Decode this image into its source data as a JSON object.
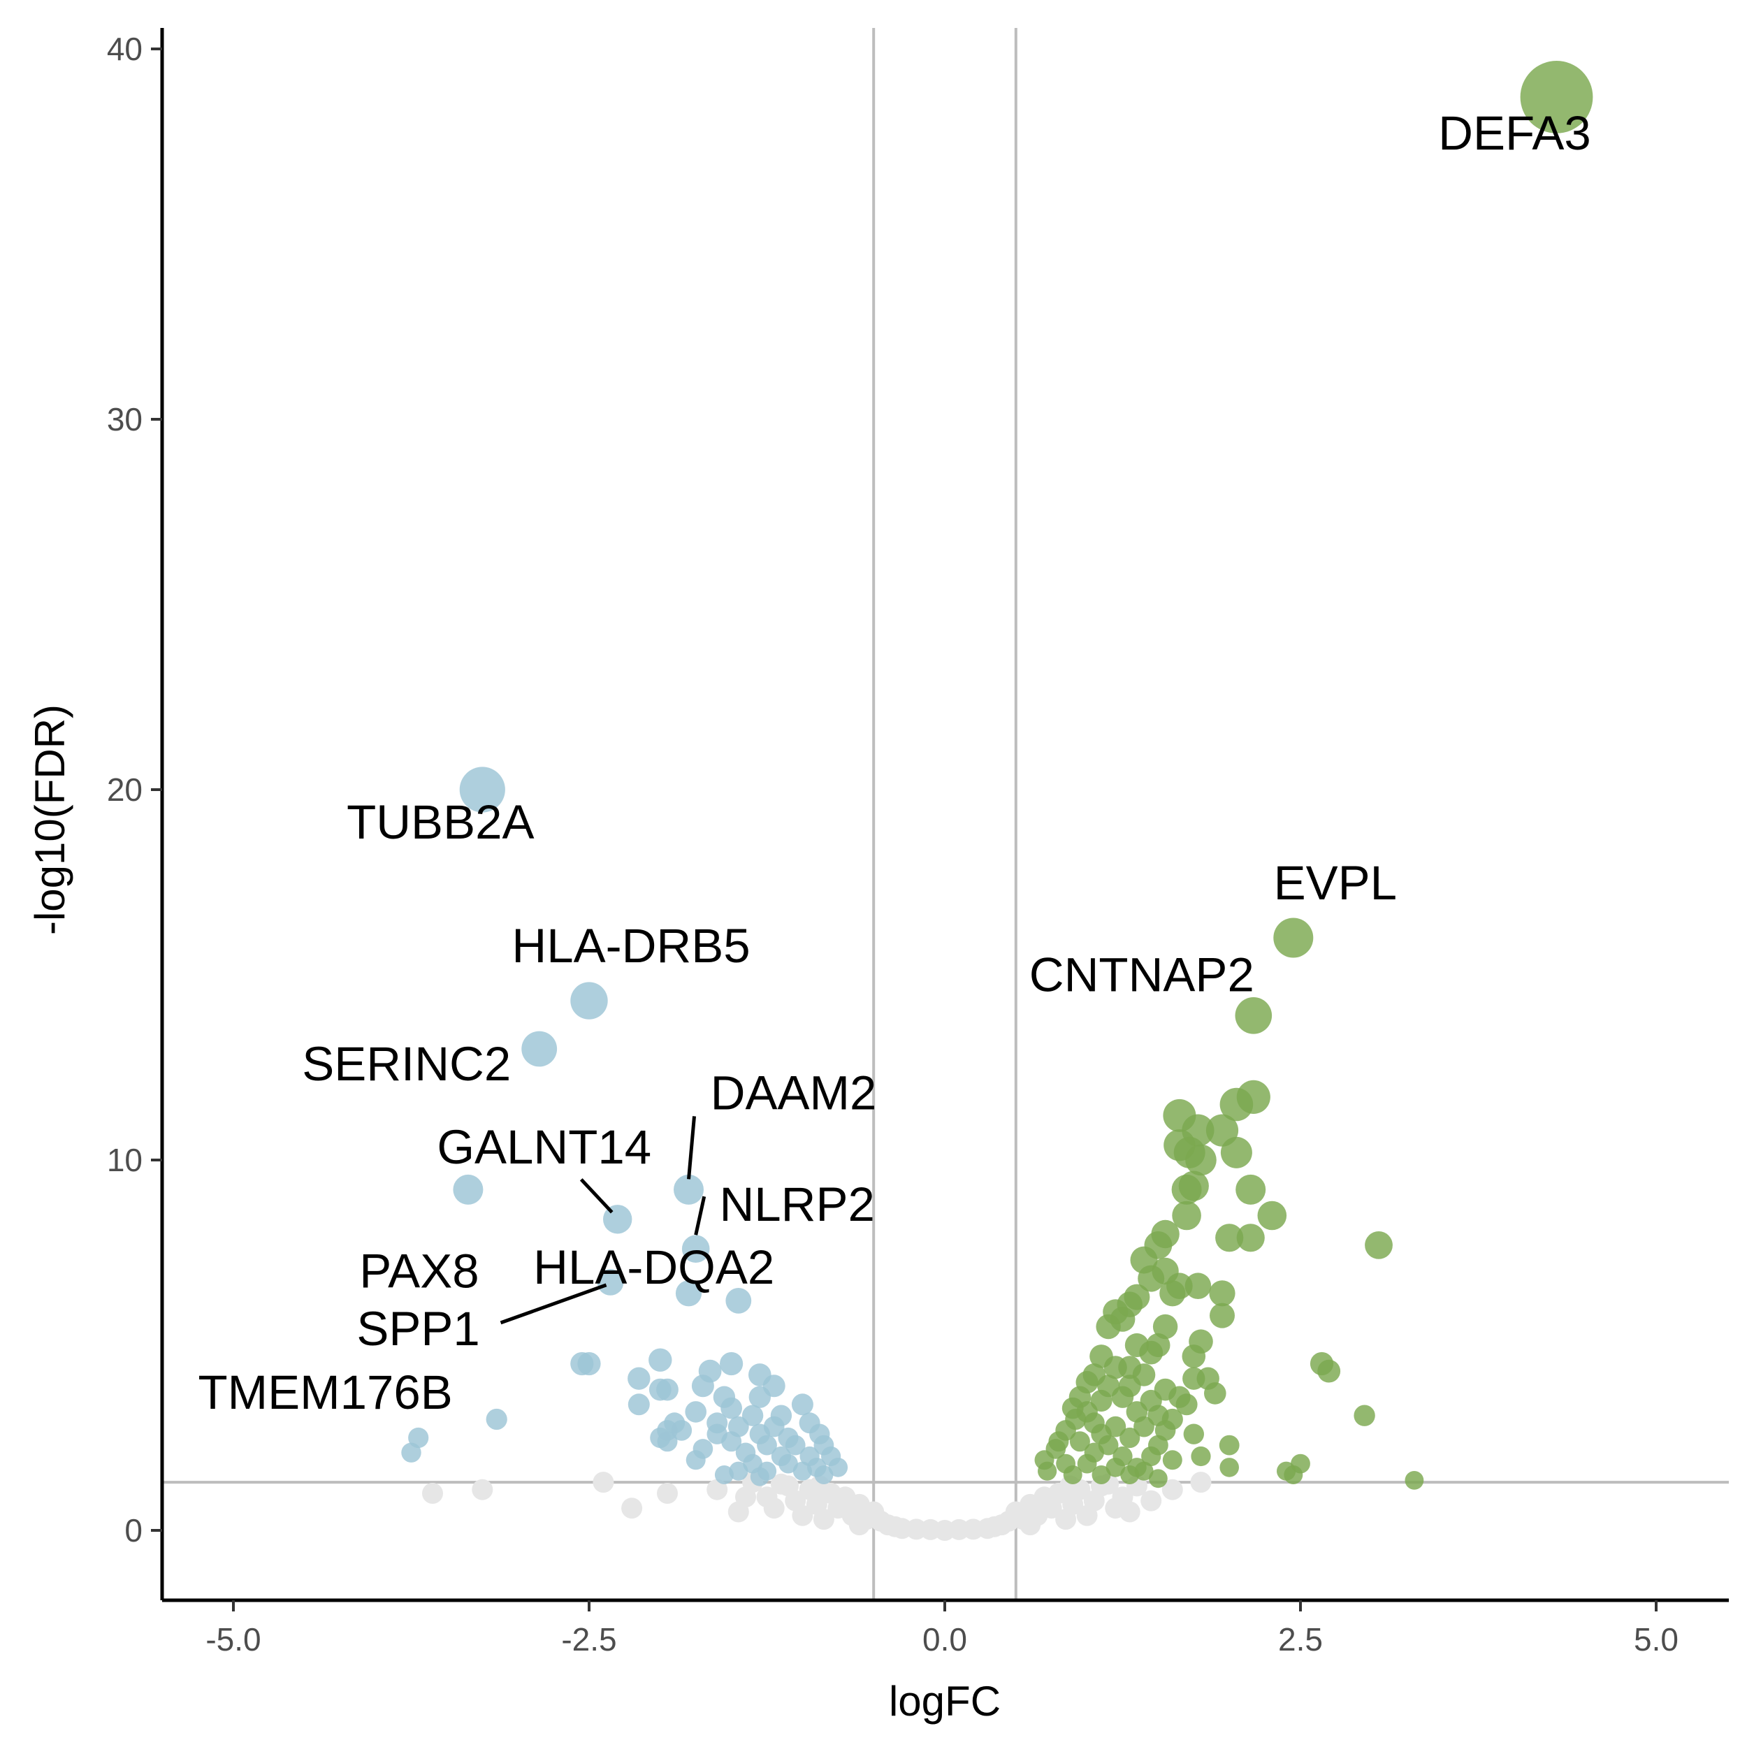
{
  "chart_data": {
    "type": "scatter",
    "title": "",
    "xlabel": "logFC",
    "ylabel": "-log10(FDR)",
    "xlim": [
      -5.5,
      5.5
    ],
    "ylim": [
      -2,
      41
    ],
    "x_ticks": [
      -5.0,
      -2.5,
      0.0,
      2.5,
      5.0
    ],
    "x_tick_labels": [
      "-5.0",
      "-2.5",
      "0.0",
      "2.5",
      "5.0"
    ],
    "y_ticks": [
      0,
      10,
      20,
      30,
      40
    ],
    "y_tick_labels": [
      "0",
      "10",
      "20",
      "30",
      "40"
    ],
    "grid": false,
    "legend": "none",
    "thresholds": {
      "logFC": [
        -0.5,
        0.5
      ],
      "neg_log10_fdr": 1.3
    },
    "colors": {
      "down": "#9cc5d6",
      "up": "#7ba84f",
      "ns": "#e6e6e6",
      "threshold_line": "#bdbdbd"
    },
    "series": [
      {
        "group": "up",
        "points": [
          [
            4.3,
            38.7
          ],
          [
            2.45,
            16.0
          ],
          [
            2.17,
            13.9
          ],
          [
            2.17,
            11.7
          ],
          [
            2.05,
            11.5
          ],
          [
            1.65,
            11.2
          ],
          [
            1.78,
            10.8
          ],
          [
            1.95,
            10.8
          ],
          [
            1.65,
            10.4
          ],
          [
            1.72,
            10.2
          ],
          [
            2.05,
            10.2
          ],
          [
            1.8,
            10.0
          ],
          [
            2.15,
            9.2
          ],
          [
            1.75,
            9.3
          ],
          [
            1.7,
            9.2
          ],
          [
            2.3,
            8.5
          ],
          [
            1.7,
            8.5
          ],
          [
            3.05,
            7.7
          ],
          [
            2.15,
            7.9
          ],
          [
            2.0,
            7.9
          ],
          [
            1.55,
            8.0
          ],
          [
            1.5,
            7.7
          ],
          [
            1.4,
            7.3
          ],
          [
            1.55,
            7.0
          ],
          [
            1.45,
            6.8
          ],
          [
            1.65,
            6.6
          ],
          [
            1.78,
            6.6
          ],
          [
            1.95,
            6.4
          ],
          [
            1.6,
            6.4
          ],
          [
            1.35,
            6.3
          ],
          [
            1.3,
            6.1
          ],
          [
            1.2,
            5.9
          ],
          [
            1.25,
            5.7
          ],
          [
            1.95,
            5.8
          ],
          [
            1.15,
            5.5
          ],
          [
            1.55,
            5.5
          ],
          [
            1.35,
            5.0
          ],
          [
            1.5,
            5.0
          ],
          [
            1.8,
            5.1
          ],
          [
            1.75,
            4.7
          ],
          [
            1.45,
            4.8
          ],
          [
            1.1,
            4.7
          ],
          [
            1.2,
            4.4
          ],
          [
            1.3,
            4.4
          ],
          [
            1.05,
            4.2
          ],
          [
            1.4,
            4.2
          ],
          [
            1.75,
            4.1
          ],
          [
            1.85,
            4.1
          ],
          [
            1.0,
            4.0
          ],
          [
            1.15,
            3.9
          ],
          [
            1.3,
            3.9
          ],
          [
            1.55,
            3.8
          ],
          [
            1.9,
            3.7
          ],
          [
            2.65,
            4.5
          ],
          [
            2.7,
            4.3
          ],
          [
            0.95,
            3.6
          ],
          [
            1.1,
            3.5
          ],
          [
            1.25,
            3.6
          ],
          [
            1.45,
            3.5
          ],
          [
            1.65,
            3.6
          ],
          [
            1.7,
            3.4
          ],
          [
            0.9,
            3.3
          ],
          [
            1.0,
            3.2
          ],
          [
            1.35,
            3.2
          ],
          [
            1.5,
            3.1
          ],
          [
            1.6,
            3.0
          ],
          [
            2.95,
            3.1
          ],
          [
            0.92,
            3.0
          ],
          [
            1.05,
            2.9
          ],
          [
            1.2,
            2.8
          ],
          [
            1.4,
            2.8
          ],
          [
            1.55,
            2.7
          ],
          [
            0.85,
            2.7
          ],
          [
            1.1,
            2.6
          ],
          [
            1.3,
            2.5
          ],
          [
            1.75,
            2.6
          ],
          [
            0.8,
            2.4
          ],
          [
            0.95,
            2.4
          ],
          [
            1.15,
            2.3
          ],
          [
            1.5,
            2.3
          ],
          [
            2.0,
            2.3
          ],
          [
            0.78,
            2.2
          ],
          [
            1.05,
            2.1
          ],
          [
            1.25,
            2.0
          ],
          [
            1.45,
            2.0
          ],
          [
            1.6,
            1.9
          ],
          [
            1.8,
            2.0
          ],
          [
            0.7,
            1.9
          ],
          [
            0.85,
            1.8
          ],
          [
            1.0,
            1.8
          ],
          [
            1.2,
            1.7
          ],
          [
            1.35,
            1.7
          ],
          [
            1.4,
            1.6
          ],
          [
            2.0,
            1.7
          ],
          [
            2.5,
            1.8
          ],
          [
            2.4,
            1.6
          ],
          [
            2.45,
            1.5
          ],
          [
            3.3,
            1.35
          ],
          [
            0.72,
            1.6
          ],
          [
            0.9,
            1.5
          ],
          [
            1.1,
            1.5
          ],
          [
            1.3,
            1.5
          ],
          [
            1.5,
            1.4
          ]
        ]
      },
      {
        "group": "down",
        "points": [
          [
            -3.25,
            20.0
          ],
          [
            -2.5,
            14.3
          ],
          [
            -2.85,
            13.0
          ],
          [
            -3.35,
            9.2
          ],
          [
            -1.8,
            9.2
          ],
          [
            -2.3,
            8.4
          ],
          [
            -1.75,
            7.6
          ],
          [
            -2.35,
            6.7
          ],
          [
            -1.8,
            6.4
          ],
          [
            -1.45,
            6.2
          ],
          [
            -2.55,
            4.5
          ],
          [
            -2.5,
            4.5
          ],
          [
            -2.0,
            4.6
          ],
          [
            -1.5,
            4.5
          ],
          [
            -2.15,
            4.1
          ],
          [
            -1.65,
            4.3
          ],
          [
            -1.3,
            4.2
          ],
          [
            -2.0,
            3.8
          ],
          [
            -1.95,
            3.8
          ],
          [
            -1.7,
            3.9
          ],
          [
            -1.2,
            3.9
          ],
          [
            -1.55,
            3.6
          ],
          [
            -1.3,
            3.6
          ],
          [
            -2.15,
            3.4
          ],
          [
            -1.75,
            3.2
          ],
          [
            -1.5,
            3.3
          ],
          [
            -1.35,
            3.1
          ],
          [
            -1.15,
            3.1
          ],
          [
            -1.0,
            3.4
          ],
          [
            -1.9,
            2.9
          ],
          [
            -1.6,
            2.9
          ],
          [
            -1.45,
            2.8
          ],
          [
            -1.2,
            2.8
          ],
          [
            -0.95,
            2.9
          ],
          [
            -1.95,
            2.7
          ],
          [
            -1.85,
            2.7
          ],
          [
            -1.6,
            2.6
          ],
          [
            -1.3,
            2.6
          ],
          [
            -1.1,
            2.5
          ],
          [
            -0.88,
            2.6
          ],
          [
            -1.95,
            2.4
          ],
          [
            -1.5,
            2.4
          ],
          [
            -1.25,
            2.3
          ],
          [
            -1.05,
            2.3
          ],
          [
            -0.85,
            2.3
          ],
          [
            -2.0,
            2.5
          ],
          [
            -1.7,
            2.2
          ],
          [
            -1.4,
            2.1
          ],
          [
            -1.15,
            2.0
          ],
          [
            -0.95,
            2.0
          ],
          [
            -0.8,
            2.0
          ],
          [
            -1.75,
            1.9
          ],
          [
            -1.35,
            1.8
          ],
          [
            -1.1,
            1.8
          ],
          [
            -0.9,
            1.7
          ],
          [
            -0.75,
            1.7
          ],
          [
            -1.45,
            1.6
          ],
          [
            -1.25,
            1.6
          ],
          [
            -1.0,
            1.6
          ],
          [
            -0.85,
            1.5
          ],
          [
            -1.55,
            1.5
          ],
          [
            -1.3,
            1.45
          ],
          [
            -3.15,
            3.0
          ],
          [
            -3.7,
            2.5
          ],
          [
            -3.75,
            2.1
          ]
        ]
      },
      {
        "group": "ns",
        "points": [
          [
            -3.6,
            1.0
          ],
          [
            -3.25,
            1.1
          ],
          [
            -2.4,
            1.3
          ],
          [
            -2.2,
            0.6
          ],
          [
            -1.95,
            1.0
          ],
          [
            -1.6,
            1.1
          ],
          [
            -1.45,
            0.5
          ],
          [
            -1.35,
            1.3
          ],
          [
            -1.25,
            0.9
          ],
          [
            -1.2,
            0.6
          ],
          [
            -1.1,
            1.2
          ],
          [
            -1.05,
            0.8
          ],
          [
            -1.0,
            0.4
          ],
          [
            -0.95,
            1.1
          ],
          [
            -0.9,
            0.7
          ],
          [
            -0.85,
            0.3
          ],
          [
            -0.8,
            1.0
          ],
          [
            -0.75,
            0.6
          ],
          [
            -0.7,
            0.9
          ],
          [
            -0.65,
            0.4
          ],
          [
            -0.6,
            0.7
          ],
          [
            -0.55,
            0.3
          ],
          [
            -0.5,
            0.5
          ],
          [
            -0.45,
            0.25
          ],
          [
            -0.4,
            0.15
          ],
          [
            -0.35,
            0.1
          ],
          [
            -0.3,
            0.05
          ],
          [
            -0.2,
            0.03
          ],
          [
            -0.1,
            0.02
          ],
          [
            0.0,
            0.0
          ],
          [
            0.1,
            0.02
          ],
          [
            0.2,
            0.03
          ],
          [
            0.3,
            0.05
          ],
          [
            0.35,
            0.1
          ],
          [
            0.4,
            0.15
          ],
          [
            0.45,
            0.25
          ],
          [
            0.5,
            0.5
          ],
          [
            0.55,
            0.3
          ],
          [
            0.6,
            0.7
          ],
          [
            0.65,
            0.4
          ],
          [
            0.7,
            0.9
          ],
          [
            0.75,
            0.6
          ],
          [
            0.8,
            1.0
          ],
          [
            0.85,
            0.3
          ],
          [
            0.9,
            0.7
          ],
          [
            0.95,
            1.1
          ],
          [
            1.0,
            0.4
          ],
          [
            1.05,
            0.8
          ],
          [
            1.1,
            1.2
          ],
          [
            1.2,
            0.6
          ],
          [
            1.25,
            0.9
          ],
          [
            1.35,
            1.2
          ],
          [
            1.45,
            0.8
          ],
          [
            1.6,
            1.1
          ],
          [
            1.8,
            1.3
          ],
          [
            -1.15,
            1.25
          ],
          [
            -0.88,
            1.2
          ],
          [
            0.88,
            1.2
          ],
          [
            1.15,
            1.25
          ],
          [
            -1.4,
            0.9
          ],
          [
            1.3,
            0.5
          ],
          [
            -0.6,
            0.15
          ],
          [
            0.6,
            0.15
          ]
        ]
      }
    ],
    "annotations": [
      {
        "label": "DEFA3",
        "x": 4.3,
        "y": 38.7
      },
      {
        "label": "TUBB2A",
        "x": -3.25,
        "y": 20.0
      },
      {
        "label": "EVPL",
        "x": 2.45,
        "y": 16.0
      },
      {
        "label": "HLA-DRB5",
        "x": -2.5,
        "y": 14.3
      },
      {
        "label": "CNTNAP2",
        "x": 2.17,
        "y": 13.9
      },
      {
        "label": "SERINC2",
        "x": -2.85,
        "y": 13.0
      },
      {
        "label": "DAAM2",
        "x": -1.8,
        "y": 9.2
      },
      {
        "label": "GALNT14",
        "x": -2.3,
        "y": 8.4
      },
      {
        "label": "NLRP2",
        "x": -1.75,
        "y": 7.6
      },
      {
        "label": "PAX8",
        "x": -3.35,
        "y": 9.2
      },
      {
        "label": "HLA-DQA2",
        "x": -1.75,
        "y": 7.6
      },
      {
        "label": "SPP1",
        "x": -2.35,
        "y": 6.7
      },
      {
        "label": "TMEM176B",
        "x": -3.15,
        "y": 3.0
      }
    ]
  }
}
